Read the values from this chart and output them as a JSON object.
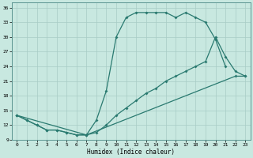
{
  "xlabel": "Humidex (Indice chaleur)",
  "bg_color": "#c8e8e0",
  "line_color": "#2a7a70",
  "grid_color": "#a8ccc5",
  "xlim": [
    -0.5,
    23.5
  ],
  "ylim": [
    9,
    37
  ],
  "yticks": [
    9,
    12,
    15,
    18,
    21,
    24,
    27,
    30,
    33,
    36
  ],
  "xticks": [
    0,
    1,
    2,
    3,
    4,
    5,
    6,
    7,
    8,
    9,
    10,
    11,
    12,
    13,
    14,
    15,
    16,
    17,
    18,
    19,
    20,
    21,
    22,
    23
  ],
  "s1_x": [
    0,
    1,
    2,
    3,
    4,
    5,
    6,
    7,
    8,
    9,
    10,
    11,
    12,
    13,
    14,
    15,
    16,
    17,
    18,
    19,
    20,
    21
  ],
  "s1_y": [
    14,
    13,
    12,
    11,
    11,
    10.5,
    10,
    10,
    13,
    19,
    30,
    34,
    35,
    35,
    35,
    35,
    34,
    35,
    34,
    33,
    29.5,
    24
  ],
  "s2_x": [
    0,
    1,
    2,
    3,
    4,
    5,
    6,
    7,
    22,
    23
  ],
  "s2_y": [
    14,
    13,
    12,
    11,
    11,
    10.5,
    10,
    10,
    22,
    22
  ],
  "s3_x": [
    0,
    7,
    8,
    9,
    10,
    11,
    12,
    13,
    14,
    15,
    16,
    17,
    18,
    19,
    20,
    21,
    22,
    23
  ],
  "s3_y": [
    14,
    10,
    10.5,
    12,
    14,
    15.5,
    17,
    18.5,
    19.5,
    21,
    22,
    23,
    24,
    25,
    30,
    26,
    23,
    22
  ]
}
